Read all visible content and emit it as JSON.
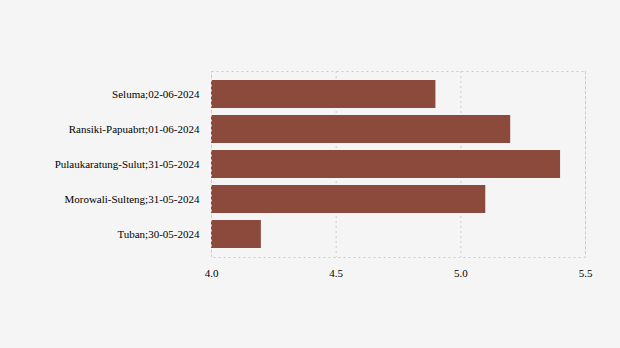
{
  "chart_data": {
    "type": "bar",
    "orientation": "horizontal",
    "categories": [
      "Seluma;02-06-2024",
      "Ransiki-Papuabrt;01-06-2024",
      "Pulaukaratung-Sulut;31-05-2024",
      "Morowali-Sulteng;31-05-2024",
      "Tuban;30-05-2024"
    ],
    "values": [
      4.9,
      5.2,
      5.4,
      5.1,
      4.2
    ],
    "color": "#8b4a3c",
    "xlim": [
      4,
      5.5
    ],
    "xticks": [
      {
        "value": 4,
        "label": "4.0"
      },
      4.5,
      {
        "value": 5,
        "label": "5.0"
      },
      5.5
    ],
    "grid": true
  }
}
